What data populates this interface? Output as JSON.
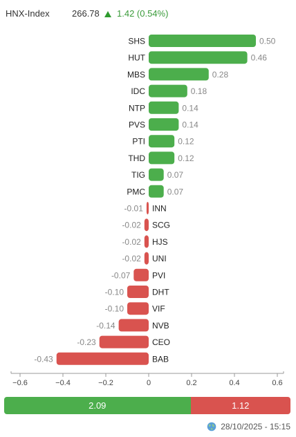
{
  "header": {
    "index_name": "HNX-Index",
    "price": "266.78",
    "change": "1.42 (0.54%)"
  },
  "chart_data": {
    "type": "bar",
    "orientation": "horizontal",
    "categories": [
      "SHS",
      "HUT",
      "MBS",
      "IDC",
      "NTP",
      "PVS",
      "PTI",
      "THD",
      "TIG",
      "PMC",
      "INN",
      "SCG",
      "HJS",
      "UNI",
      "PVI",
      "DHT",
      "VIF",
      "NVB",
      "CEO",
      "BAB"
    ],
    "values": [
      0.5,
      0.46,
      0.28,
      0.18,
      0.14,
      0.14,
      0.12,
      0.12,
      0.07,
      0.07,
      -0.01,
      -0.02,
      -0.02,
      -0.02,
      -0.07,
      -0.1,
      -0.1,
      -0.14,
      -0.23,
      -0.43
    ],
    "value_labels": [
      "0.50",
      "0.46",
      "0.28",
      "0.18",
      "0.14",
      "0.14",
      "0.12",
      "0.12",
      "0.07",
      "0.07",
      "-0.01",
      "-0.02",
      "-0.02",
      "-0.02",
      "-0.07",
      "-0.10",
      "-0.10",
      "-0.14",
      "-0.23",
      "-0.43"
    ],
    "xlim": [
      -0.6,
      0.6
    ],
    "xticks": [
      -0.6,
      -0.4,
      -0.2,
      0,
      0.2,
      0.4,
      0.6
    ],
    "xtick_labels": [
      "−0.6",
      "−0.4",
      "−0.2",
      "0",
      "0.2",
      "0.4",
      "0.6"
    ],
    "colors": {
      "positive": "#4cae4c",
      "negative": "#d9534f"
    },
    "grid": false
  },
  "summary": {
    "advance_total": "2.09",
    "decline_total": "1.12",
    "advance_value": 2.09,
    "decline_value": 1.12
  },
  "footer": {
    "timestamp": "28/10/2025 - 15:15",
    "icon": "globe-icon"
  }
}
